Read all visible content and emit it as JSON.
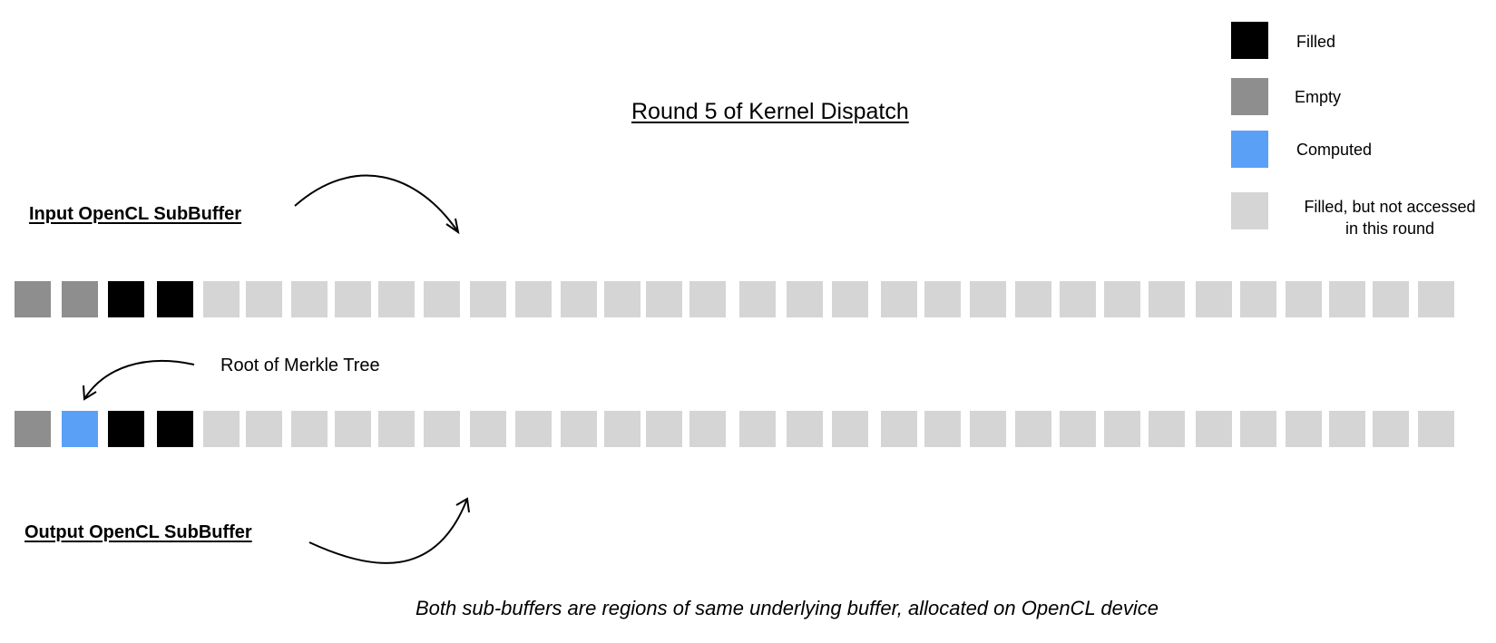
{
  "title": "Round 5 of Kernel Dispatch",
  "input_label": "Input OpenCL SubBuffer",
  "output_label": "Output OpenCL SubBuffer",
  "root_label": "Root of Merkle Tree",
  "footnote": "Both sub-buffers are regions of same underlying buffer, allocated on OpenCL device",
  "colors": {
    "filled": "#000000",
    "empty": "#8e8e8e",
    "computed": "#5aa0f7",
    "not_accessed": "#d5d5d5"
  },
  "legend": [
    {
      "state": "filled",
      "label": "Filled"
    },
    {
      "state": "empty",
      "label": "Empty"
    },
    {
      "state": "computed",
      "label": "Computed"
    },
    {
      "state": "not_accessed",
      "label": "Filled, but not accessed\nin this round"
    }
  ],
  "input_buffer": [
    "empty",
    "empty",
    "filled",
    "filled",
    "not_accessed",
    "not_accessed",
    "not_accessed",
    "not_accessed",
    "not_accessed",
    "not_accessed",
    "not_accessed",
    "not_accessed",
    "not_accessed",
    "not_accessed",
    "not_accessed",
    "not_accessed",
    "not_accessed",
    "not_accessed",
    "not_accessed",
    "not_accessed",
    "not_accessed",
    "not_accessed",
    "not_accessed",
    "not_accessed",
    "not_accessed",
    "not_accessed",
    "not_accessed",
    "not_accessed",
    "not_accessed",
    "not_accessed",
    "not_accessed",
    "not_accessed"
  ],
  "output_buffer": [
    "empty",
    "computed",
    "filled",
    "filled",
    "not_accessed",
    "not_accessed",
    "not_accessed",
    "not_accessed",
    "not_accessed",
    "not_accessed",
    "not_accessed",
    "not_accessed",
    "not_accessed",
    "not_accessed",
    "not_accessed",
    "not_accessed",
    "not_accessed",
    "not_accessed",
    "not_accessed",
    "not_accessed",
    "not_accessed",
    "not_accessed",
    "not_accessed",
    "not_accessed",
    "not_accessed",
    "not_accessed",
    "not_accessed",
    "not_accessed",
    "not_accessed",
    "not_accessed",
    "not_accessed",
    "not_accessed"
  ]
}
